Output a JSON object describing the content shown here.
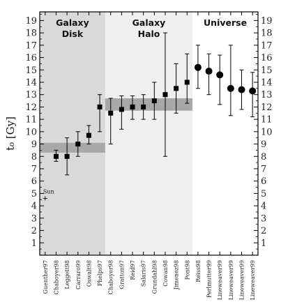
{
  "chart_data": {
    "type": "scatter",
    "ylabel": "t₀ [Gy]",
    "ylim": [
      0,
      19.7
    ],
    "yticks": [
      1,
      2,
      3,
      4,
      5,
      6,
      7,
      8,
      9,
      10,
      11,
      12,
      13,
      14,
      15,
      16,
      17,
      18,
      19
    ],
    "categories": [
      "Guenther97",
      "Chaboyer98",
      "Leggett98",
      "Carraro99",
      "Oswalt98",
      "Phelps97",
      "Chaboyer98",
      "Gratton97",
      "Reid97",
      "Salaris97",
      "Grundahl98",
      "Cowan98",
      "Jimenez98",
      "Pont98",
      "Reiss98",
      "Perlmutter99",
      "Lineweaver99",
      "Lineweaver99",
      "Lineweaver99",
      "Lineweaver99"
    ],
    "regions": [
      {
        "label_line1": "Galaxy",
        "label_line2": "Disk",
        "start": 0,
        "end": 5,
        "color": "#d9d9d9"
      },
      {
        "label_line1": "Galaxy",
        "label_line2": "Halo",
        "start": 6,
        "end": 13,
        "color": "#efefef"
      },
      {
        "label_line1": "Universe",
        "label_line2": "",
        "start": 14,
        "end": 19,
        "color": "#ffffff"
      }
    ],
    "bands": [
      {
        "start": 0,
        "end": 5,
        "low": 8.3,
        "high": 9.1
      },
      {
        "start": 6,
        "end": 13,
        "low": 11.7,
        "high": 12.7
      }
    ],
    "sun": {
      "label": "Sun",
      "age": 4.6,
      "index": 0
    },
    "points": [
      {
        "index": 1,
        "value": 8.0,
        "low": 7.6,
        "high": 8.5,
        "marker": "square"
      },
      {
        "index": 2,
        "value": 8.0,
        "low": 6.5,
        "high": 9.5,
        "marker": "square"
      },
      {
        "index": 3,
        "value": 9.0,
        "low": 8.0,
        "high": 10.0,
        "marker": "square"
      },
      {
        "index": 4,
        "value": 9.7,
        "low": 9.0,
        "high": 10.5,
        "marker": "square"
      },
      {
        "index": 5,
        "value": 12.0,
        "low": 10.0,
        "high": 13.0,
        "marker": "square"
      },
      {
        "index": 6,
        "value": 11.5,
        "low": 9.0,
        "high": 12.7,
        "marker": "square"
      },
      {
        "index": 7,
        "value": 11.8,
        "low": 10.2,
        "high": 12.9,
        "marker": "square"
      },
      {
        "index": 8,
        "value": 12.0,
        "low": 11.0,
        "high": 12.9,
        "marker": "square"
      },
      {
        "index": 9,
        "value": 12.0,
        "low": 11.0,
        "high": 13.0,
        "marker": "square"
      },
      {
        "index": 10,
        "value": 12.5,
        "low": 11.0,
        "high": 14.0,
        "marker": "square"
      },
      {
        "index": 11,
        "value": 13.0,
        "low": 8.0,
        "high": 18.0,
        "marker": "square"
      },
      {
        "index": 12,
        "value": 13.5,
        "low": 11.5,
        "high": 15.5,
        "marker": "square"
      },
      {
        "index": 13,
        "value": 14.0,
        "low": 12.3,
        "high": 16.3,
        "marker": "square"
      },
      {
        "index": 14,
        "value": 15.2,
        "low": 13.5,
        "high": 17.0,
        "marker": "circle"
      },
      {
        "index": 15,
        "value": 14.9,
        "low": 13.0,
        "high": 16.3,
        "marker": "circle"
      },
      {
        "index": 16,
        "value": 14.6,
        "low": 12.2,
        "high": 16.2,
        "marker": "circle"
      },
      {
        "index": 17,
        "value": 13.5,
        "low": 11.3,
        "high": 17.0,
        "marker": "circle"
      },
      {
        "index": 18,
        "value": 13.4,
        "low": 11.8,
        "high": 15.0,
        "marker": "circle"
      },
      {
        "index": 19,
        "value": 13.3,
        "low": 11.2,
        "high": 14.8,
        "marker": "circle"
      }
    ],
    "band_color": "#a8a8a8",
    "marker_color": "#000000"
  }
}
